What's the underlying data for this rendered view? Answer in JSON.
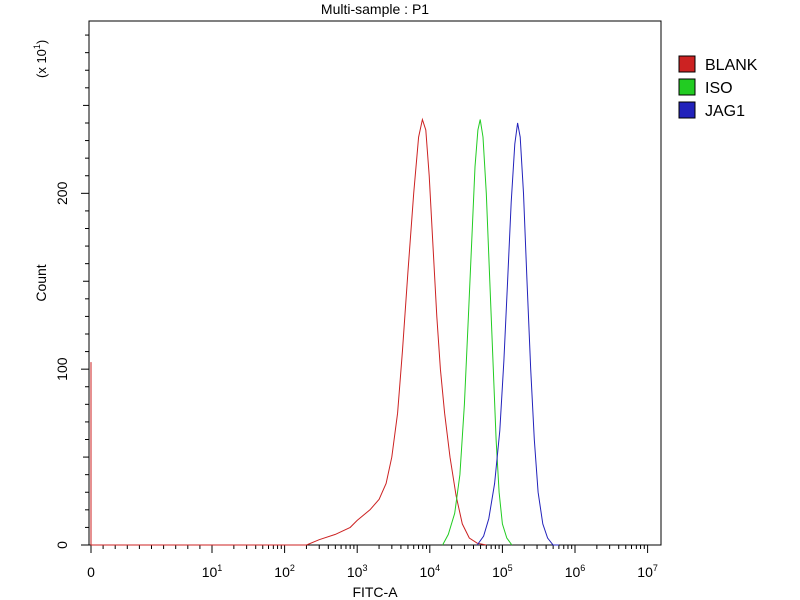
{
  "chart_data": {
    "type": "line",
    "title": "Multi-sample : P1",
    "xlabel": "FITC-A",
    "ylabel": "Count",
    "y_multiplier_label": "(x 10",
    "y_multiplier_exp": "1",
    "y_multiplier_close": ")",
    "xscale": "biexponential-log",
    "xlim": [
      0,
      10000000
    ],
    "ylim": [
      0,
      298
    ],
    "x_ticks": [
      {
        "value": 0,
        "base": "0",
        "exp": ""
      },
      {
        "value": 10,
        "base": "10",
        "exp": "1"
      },
      {
        "value": 100,
        "base": "10",
        "exp": "2"
      },
      {
        "value": 1000,
        "base": "10",
        "exp": "3"
      },
      {
        "value": 10000,
        "base": "10",
        "exp": "4"
      },
      {
        "value": 100000,
        "base": "10",
        "exp": "5"
      },
      {
        "value": 1000000,
        "base": "10",
        "exp": "6"
      },
      {
        "value": 10000000,
        "base": "10",
        "exp": "7"
      }
    ],
    "y_ticks": [
      {
        "value": 0,
        "label": "0"
      },
      {
        "value": 100,
        "label": "100"
      },
      {
        "value": 200,
        "label": "200"
      }
    ],
    "legend_position": "top-right",
    "series": [
      {
        "name": "BLANK",
        "color": "#cc2222",
        "points": [
          [
            0,
            0
          ],
          [
            0,
            104
          ],
          [
            0,
            0
          ],
          [
            200,
            0
          ],
          [
            300,
            3
          ],
          [
            500,
            6
          ],
          [
            800,
            10
          ],
          [
            1000,
            14
          ],
          [
            1500,
            20
          ],
          [
            2000,
            26
          ],
          [
            2500,
            35
          ],
          [
            3000,
            50
          ],
          [
            3600,
            75
          ],
          [
            4200,
            110
          ],
          [
            5000,
            155
          ],
          [
            6000,
            200
          ],
          [
            7000,
            232
          ],
          [
            7900,
            242
          ],
          [
            8800,
            236
          ],
          [
            9800,
            210
          ],
          [
            11000,
            172
          ],
          [
            12500,
            130
          ],
          [
            14000,
            100
          ],
          [
            16000,
            75
          ],
          [
            19000,
            50
          ],
          [
            23000,
            28
          ],
          [
            28000,
            12
          ],
          [
            35000,
            4
          ],
          [
            45000,
            1
          ],
          [
            60000,
            0
          ]
        ]
      },
      {
        "name": "ISO",
        "color": "#22cc22",
        "points": [
          [
            15000,
            0
          ],
          [
            18000,
            6
          ],
          [
            22000,
            18
          ],
          [
            26000,
            40
          ],
          [
            30000,
            80
          ],
          [
            34000,
            130
          ],
          [
            38000,
            175
          ],
          [
            42000,
            215
          ],
          [
            46000,
            236
          ],
          [
            49500,
            242
          ],
          [
            54000,
            232
          ],
          [
            60000,
            200
          ],
          [
            67000,
            150
          ],
          [
            75000,
            100
          ],
          [
            82000,
            60
          ],
          [
            90000,
            30
          ],
          [
            100000,
            12
          ],
          [
            115000,
            4
          ],
          [
            135000,
            0
          ]
        ]
      },
      {
        "name": "JAG1",
        "color": "#2222bb",
        "points": [
          [
            45000,
            0
          ],
          [
            55000,
            5
          ],
          [
            65000,
            15
          ],
          [
            78000,
            35
          ],
          [
            92000,
            65
          ],
          [
            105000,
            105
          ],
          [
            118000,
            150
          ],
          [
            132000,
            195
          ],
          [
            148000,
            228
          ],
          [
            162000,
            240
          ],
          [
            176000,
            232
          ],
          [
            195000,
            200
          ],
          [
            218000,
            150
          ],
          [
            245000,
            100
          ],
          [
            275000,
            60
          ],
          [
            310000,
            30
          ],
          [
            360000,
            12
          ],
          [
            420000,
            4
          ],
          [
            500000,
            0
          ],
          [
            600000,
            0
          ]
        ]
      }
    ]
  }
}
